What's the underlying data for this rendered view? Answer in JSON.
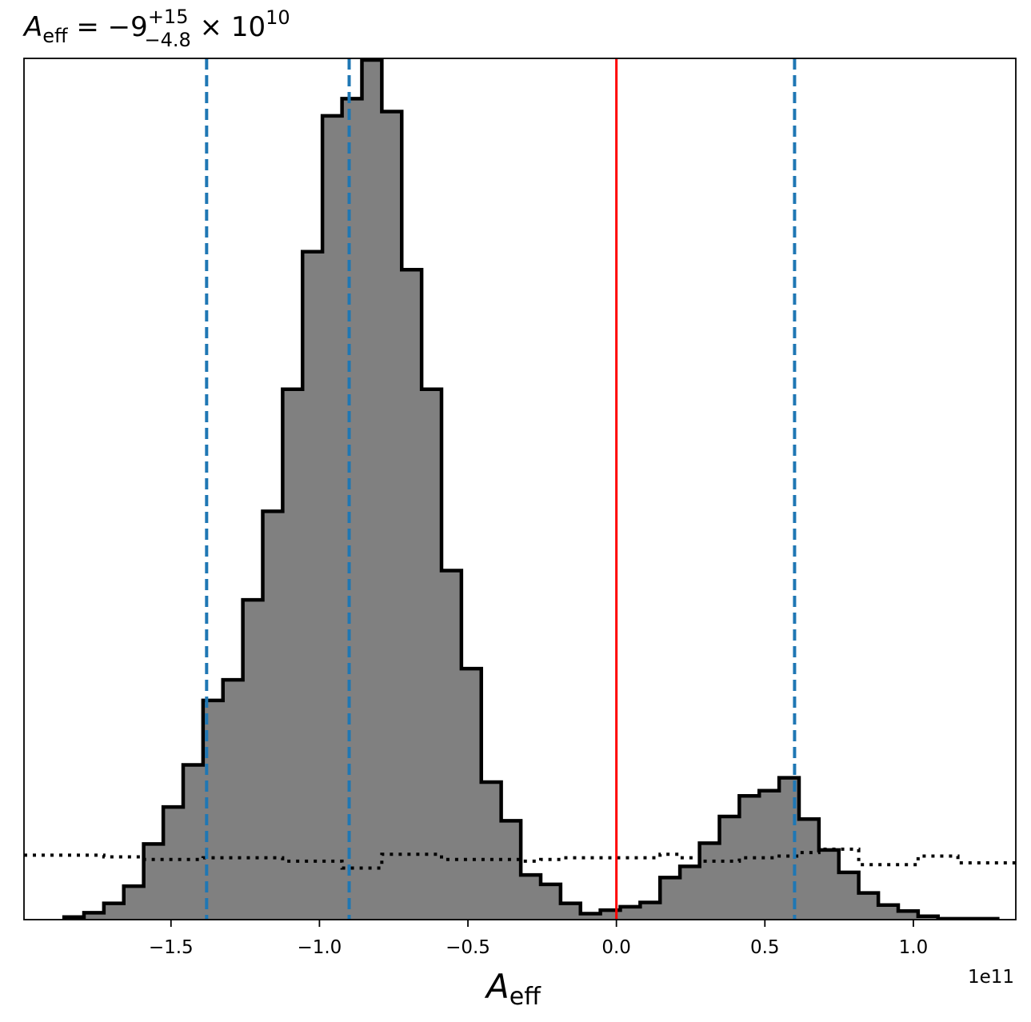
{
  "chart_data": {
    "type": "histogram",
    "title": {
      "prefix": "A",
      "prefix_sub": "eff",
      "relation": " = −9",
      "sup": "+15",
      "sub": "−4.8",
      "times": " × 10",
      "exp": "10"
    },
    "xlabel": {
      "main": "A",
      "sub": "eff"
    },
    "x_offset_text": "1e11",
    "xlim": [
      -199500000000.0,
      134500000000.0
    ],
    "ylim": [
      0,
      1.0
    ],
    "x_ticks": [
      {
        "value": -150000000000.0,
        "label": "−1.5"
      },
      {
        "value": -100000000000.0,
        "label": "−1.0"
      },
      {
        "value": -50000000000.0,
        "label": "−0.5"
      },
      {
        "value": 0.0,
        "label": "0.0"
      },
      {
        "value": 50000000000.0,
        "label": "0.5"
      },
      {
        "value": 100000000000.0,
        "label": "1.0"
      }
    ],
    "bin_edges": [
      -186000000000.0,
      -179300000000.0,
      -172600000000.0,
      -165900000000.0,
      -159200000000.0,
      -152600000000.0,
      -145900000000.0,
      -139200000000.0,
      -132500000000.0,
      -125800000000.0,
      -119100000000.0,
      -112400000000.0,
      -105700000000.0,
      -99000000000.0,
      -92400000000.0,
      -85700000000.0,
      -79000000000.0,
      -72300000000.0,
      -65600000000.0,
      -58900000000.0,
      -52200000000.0,
      -45500000000.0,
      -38800000000.0,
      -32200000000.0,
      -25500000000.0,
      -18800000000.0,
      -12100000000.0,
      -5400000000.0,
      1300000000.0,
      8000000000.0,
      14700000000.0,
      21400000000.0,
      28000000000.0,
      34700000000.0,
      41400000000.0,
      48100000000.0,
      54800000000.0,
      61500000000.0,
      68200000000.0,
      74900000000.0,
      81600000000.0,
      88200000000.0,
      94900000000.0,
      101600000000.0,
      108300000000.0,
      115000000000.0,
      121700000000.0,
      128400000000.0
    ],
    "posterior_counts": [
      0.003,
      0.008,
      0.019,
      0.039,
      0.088,
      0.131,
      0.18,
      0.255,
      0.279,
      0.372,
      0.475,
      0.617,
      0.777,
      0.935,
      0.955,
      1.0,
      0.94,
      0.756,
      0.617,
      0.406,
      0.292,
      0.16,
      0.115,
      0.052,
      0.041,
      0.019,
      0.007,
      0.011,
      0.015,
      0.02,
      0.049,
      0.062,
      0.089,
      0.12,
      0.144,
      0.15,
      0.165,
      0.117,
      0.081,
      0.055,
      0.031,
      0.017,
      0.01,
      0.004,
      0.001,
      0.001,
      0.001
    ],
    "prior_counts": [
      0.075,
      0.075,
      0.073,
      0.073,
      0.07,
      0.07,
      0.07,
      0.072,
      0.072,
      0.072,
      0.072,
      0.068,
      0.068,
      0.068,
      0.06,
      0.06,
      0.076,
      0.076,
      0.076,
      0.07,
      0.07,
      0.07,
      0.07,
      0.068,
      0.07,
      0.072,
      0.072,
      0.072,
      0.072,
      0.072,
      0.076,
      0.072,
      0.068,
      0.068,
      0.072,
      0.072,
      0.074,
      0.078,
      0.082,
      0.082,
      0.064,
      0.064,
      0.064,
      0.074,
      0.074,
      0.066,
      0.066
    ],
    "truth_value": 0.0,
    "credible_lines": [
      -138000000000.0,
      -90000000000.0,
      60000000000.0
    ],
    "colors": {
      "hist_fill": "#808080",
      "hist_edge": "#000000",
      "truth_line": "#ff0000",
      "credible_line": "#1f77b4",
      "prior_line": "#000000"
    }
  }
}
